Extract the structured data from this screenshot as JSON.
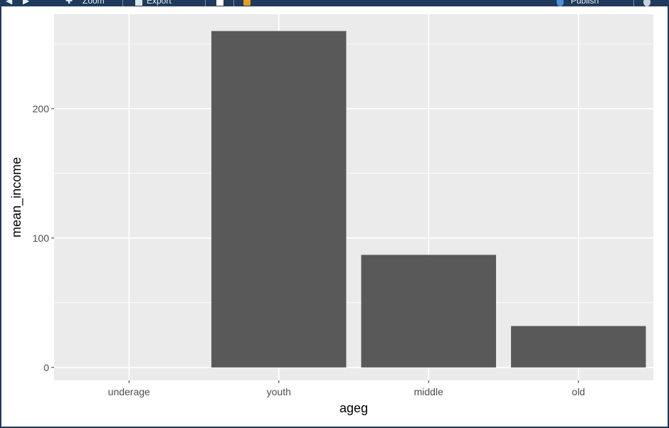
{
  "toolbar": {
    "zoom_label": "Zoom",
    "export_label": "Export",
    "publish_label": "Publish"
  },
  "colors": {
    "panel_background": "#EBEBEB",
    "grid_line": "#FFFFFF",
    "bar_fill": "#595959",
    "toolbar_background": "#1F3A5C"
  },
  "chart_data": {
    "type": "bar",
    "categories": [
      "underage",
      "youth",
      "middle",
      "old"
    ],
    "values": [
      0,
      260,
      87,
      32
    ],
    "title": "",
    "xlabel": "ageg",
    "ylabel": "mean_income",
    "ylim": [
      -10,
      273
    ],
    "yticks": [
      0,
      100,
      200
    ],
    "grid": true,
    "legend": "none"
  }
}
